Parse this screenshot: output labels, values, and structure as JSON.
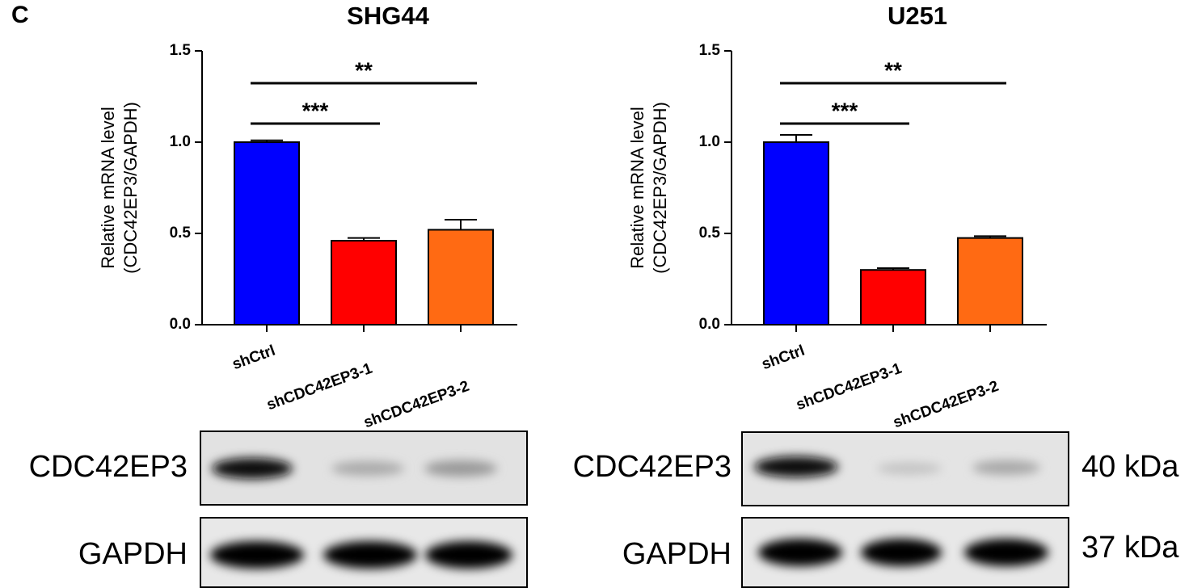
{
  "panel_label": "C",
  "chart_data": [
    {
      "type": "bar",
      "title": "SHG44",
      "y_label": [
        "Relative mRNA level",
        "(CDC42EP3/GAPDH)"
      ],
      "categories": [
        "shCtrl",
        "shCDC42EP3-1",
        "shCDC42EP3-2"
      ],
      "values": [
        1.0,
        0.46,
        0.52
      ],
      "errors": [
        0.01,
        0.015,
        0.055
      ],
      "colors": [
        "#0000ff",
        "#ff0000",
        "#ff6a13"
      ],
      "ylim": [
        0,
        1.5
      ],
      "yticks": [
        {
          "value": 0,
          "label": "0.0"
        },
        {
          "value": 0.5,
          "label": "0.5"
        },
        {
          "value": 1,
          "label": "1.0"
        },
        {
          "value": 1.5,
          "label": "1.5"
        }
      ],
      "annotations": [
        {
          "text": "***",
          "between": [
            0,
            1
          ]
        },
        {
          "text": "**",
          "between": [
            0,
            2
          ]
        }
      ]
    },
    {
      "type": "bar",
      "title": "U251",
      "y_label": [
        "Relative mRNA level",
        "(CDC42EP3/GAPDH)"
      ],
      "categories": [
        "shCtrl",
        "shCDC42EP3-1",
        "shCDC42EP3-2"
      ],
      "values": [
        1.0,
        0.3,
        0.475
      ],
      "errors": [
        0.04,
        0.01,
        0.01
      ],
      "colors": [
        "#0000ff",
        "#ff0000",
        "#ff6a13"
      ],
      "ylim": [
        0,
        1.5
      ],
      "yticks": [
        {
          "value": 0,
          "label": "0.0"
        },
        {
          "value": 0.5,
          "label": "0.5"
        },
        {
          "value": 1,
          "label": "1.0"
        },
        {
          "value": 1.5,
          "label": "1.5"
        }
      ],
      "annotations": [
        {
          "text": "***",
          "between": [
            0,
            1
          ]
        },
        {
          "text": "**",
          "between": [
            0,
            2
          ]
        }
      ]
    }
  ],
  "blots": {
    "rows": [
      {
        "label": "CDC42EP3",
        "size": "40 kDa"
      },
      {
        "label": "GAPDH",
        "size": "37 kDa"
      }
    ]
  }
}
